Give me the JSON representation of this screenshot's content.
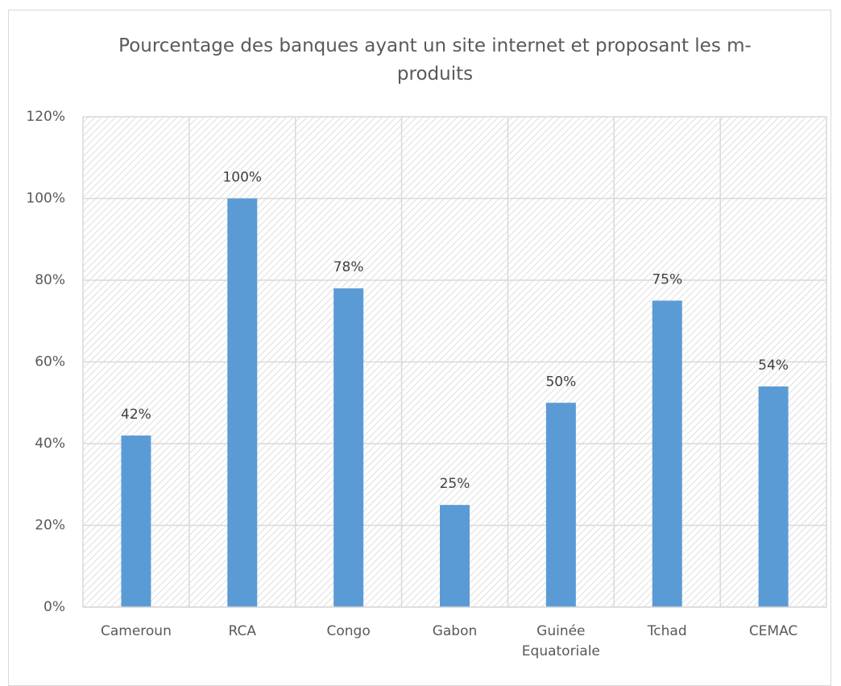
{
  "chart_data": {
    "type": "bar",
    "title": "Pourcentage des banques ayant un site internet et proposant les m-produits",
    "categories": [
      "Cameroun",
      "RCA",
      "Congo",
      "Gabon",
      "Guinée Equatoriale",
      "Tchad",
      "CEMAC"
    ],
    "values": [
      42,
      100,
      78,
      25,
      50,
      75,
      54
    ],
    "value_labels": [
      "42%",
      "100%",
      "78%",
      "25%",
      "50%",
      "75%",
      "54%"
    ],
    "color": "#5b9bd5",
    "ylim": [
      0,
      120
    ],
    "yticks": [
      {
        "value": 0,
        "label": "0%"
      },
      {
        "value": 20,
        "label": "20%"
      },
      {
        "value": 40,
        "label": "40%"
      },
      {
        "value": 60,
        "label": "60%"
      },
      {
        "value": 80,
        "label": "80%"
      },
      {
        "value": 100,
        "label": "100%"
      },
      {
        "value": 120,
        "label": "120%"
      }
    ],
    "grid": true
  }
}
